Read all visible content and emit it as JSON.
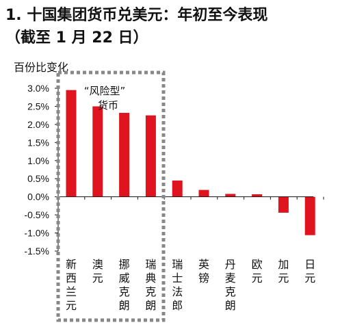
{
  "title_line1": "1. 十国集团货币兑美元：年初至今表现",
  "title_line2": "（截至 1 月 22 日）",
  "colors": {
    "bar": "#e0141e",
    "axis": "#111111",
    "highlight_box": "#888888"
  },
  "chart_data": {
    "type": "bar",
    "title": "1. 十国集团货币兑美元：年初至今表现（截至 1 月 22 日）",
    "ylabel": "百份比变化",
    "xlabel": "",
    "categories": [
      "新西兰元",
      "澳元",
      "挪威克朗",
      "瑞典克朗",
      "瑞士法郎",
      "英镑",
      "丹麦克朗",
      "欧元",
      "加元",
      "日元"
    ],
    "values": [
      2.95,
      2.5,
      2.32,
      2.25,
      0.45,
      0.19,
      0.08,
      0.07,
      -0.44,
      -1.06
    ],
    "ylim": [
      -1.5,
      3.0
    ],
    "yticks": [
      "3.0%",
      "2.5%",
      "2.0%",
      "1.5%",
      "1.0%",
      "0.5%",
      "0.0%",
      "-0.5%",
      "-1.0%",
      "-1.5%"
    ],
    "grid": false,
    "legend": "none",
    "annotation": "“风险型”货币",
    "annotation_lines": [
      "“风险型”",
      "货币"
    ]
  }
}
